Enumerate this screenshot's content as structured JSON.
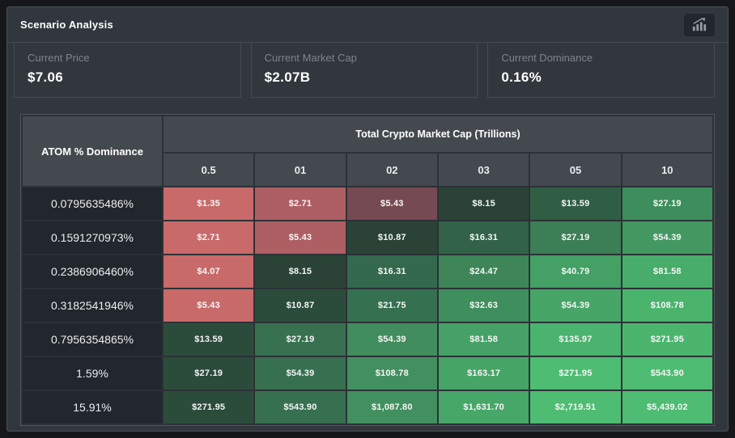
{
  "panel": {
    "title": "Scenario Analysis"
  },
  "stats": [
    {
      "label": "Current Price",
      "value": "$7.06"
    },
    {
      "label": "Current Market Cap",
      "value": "$2.07B"
    },
    {
      "label": "Current Dominance",
      "value": "0.16%"
    }
  ],
  "table": {
    "corner_header": "ATOM % Dominance",
    "group_header": "Total Crypto Market Cap (Trillions)",
    "column_headers": [
      "0.5",
      "01",
      "02",
      "03",
      "05",
      "10"
    ],
    "rows": [
      {
        "dominance": "0.0795635486%",
        "values": [
          "$1.35",
          "$2.71",
          "$5.43",
          "$8.15",
          "$13.59",
          "$27.19"
        ],
        "colors": [
          "#c86a6a",
          "#ad5f63",
          "#764a52",
          "#2a4336",
          "#305e44",
          "#3e8e5d"
        ]
      },
      {
        "dominance": "0.1591270973%",
        "values": [
          "$2.71",
          "$5.43",
          "$10.87",
          "$16.31",
          "$27.19",
          "$54.39"
        ],
        "colors": [
          "#c86a6a",
          "#ad5f63",
          "#2a4336",
          "#326349",
          "#3c7e55",
          "#439862"
        ]
      },
      {
        "dominance": "0.2386906460%",
        "values": [
          "$4.07",
          "$8.15",
          "$16.31",
          "$24.47",
          "$40.79",
          "$81.58"
        ],
        "colors": [
          "#c86a6a",
          "#2a4336",
          "#34694d",
          "#3e8658",
          "#44a065",
          "#48ac6a"
        ]
      },
      {
        "dominance": "0.3182541946%",
        "values": [
          "$5.43",
          "$10.87",
          "$21.75",
          "$32.63",
          "$54.39",
          "$108.78"
        ],
        "colors": [
          "#c86a6a",
          "#2c4c3b",
          "#357050",
          "#3f8f5e",
          "#46a567",
          "#4ab46d"
        ]
      },
      {
        "dominance": "0.7956354865%",
        "values": [
          "$13.59",
          "$27.19",
          "$54.39",
          "$81.58",
          "$135.97",
          "$271.95"
        ],
        "colors": [
          "#2c4c3b",
          "#377150",
          "#418d5d",
          "#46a166",
          "#4ab36d",
          "#4bb56e"
        ]
      },
      {
        "dominance": "1.59%",
        "values": [
          "$27.19",
          "$54.39",
          "$108.78",
          "$163.17",
          "$271.95",
          "$543.90"
        ],
        "colors": [
          "#2c4c3b",
          "#377050",
          "#42905f",
          "#47a467",
          "#4ebc72",
          "#4ebc72"
        ]
      },
      {
        "dominance": "15.91%",
        "values": [
          "$271.95",
          "$543.90",
          "$1,087.80",
          "$1,631.70",
          "$2,719.51",
          "$5,439.02"
        ],
        "colors": [
          "#2c4c3b",
          "#377050",
          "#42905f",
          "#47a768",
          "#4ebc72",
          "#4ebc72"
        ]
      }
    ]
  },
  "colors": {
    "page_bg": "#15171b",
    "card_bg": "#31373d",
    "card_border": "#4b5157",
    "table_header_bg": "#44494f",
    "dominance_cell_bg": "#22262d",
    "label_text": "#7e848b",
    "value_text": "#ffffff",
    "negative_cell": "#c86a6a",
    "positive_cell_bright": "#4ebc72",
    "positive_cell_dark": "#2a4336"
  }
}
